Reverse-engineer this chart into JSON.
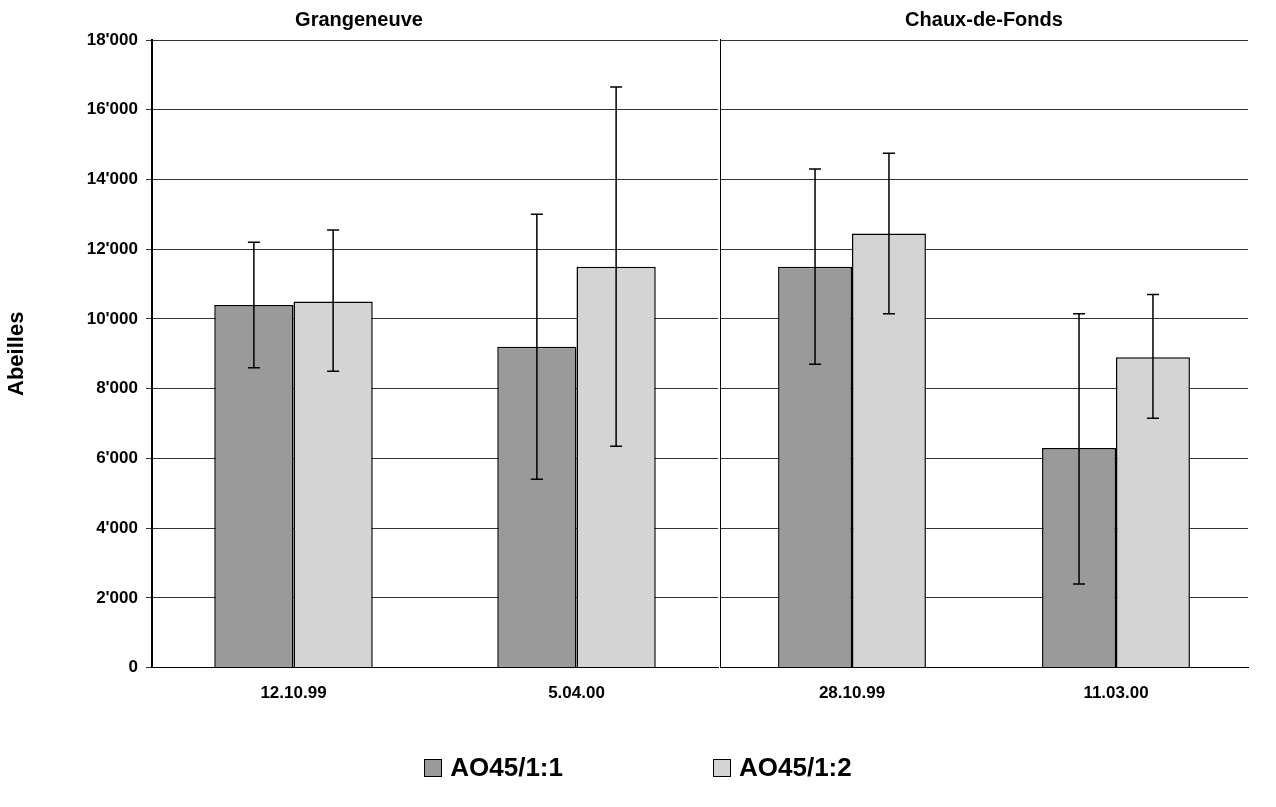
{
  "chart_data": [
    {
      "type": "bar",
      "title": "Grangeneuve",
      "ylabel": "Abeilles",
      "categories": [
        "12.10.99",
        "5.04.00"
      ],
      "series": [
        {
          "name": "AO45/1:1",
          "color": "#9a9a9a",
          "values": [
            10400,
            9200
          ],
          "errors": [
            [
              8600,
              12200
            ],
            [
              5400,
              13000
            ]
          ]
        },
        {
          "name": "AO45/1:2",
          "color": "#d4d4d4",
          "values": [
            10500,
            11500
          ],
          "errors": [
            [
              8500,
              12550
            ],
            [
              6350,
              16650
            ]
          ]
        }
      ],
      "ylim": [
        0,
        18000
      ],
      "yticks": [
        {
          "value": 0,
          "label": "0"
        },
        {
          "value": 2000,
          "label": "2'000"
        },
        {
          "value": 4000,
          "label": "4'000"
        },
        {
          "value": 6000,
          "label": "6'000"
        },
        {
          "value": 8000,
          "label": "8'000"
        },
        {
          "value": 10000,
          "label": "10'000"
        },
        {
          "value": 12000,
          "label": "12'000"
        },
        {
          "value": 14000,
          "label": "14'000"
        },
        {
          "value": 16000,
          "label": "16'000"
        },
        {
          "value": 18000,
          "label": "18'000"
        }
      ],
      "grid": "y",
      "legend": "bottom"
    },
    {
      "type": "bar",
      "title": "Chaux-de-Fonds",
      "categories": [
        "28.10.99",
        "11.03.00"
      ],
      "series": [
        {
          "color": "#9a9a9a",
          "values": [
            11500,
            6300
          ],
          "errors": [
            [
              8700,
              14300
            ],
            [
              2400,
              10150
            ]
          ]
        },
        {
          "color": "#d4d4d4",
          "values": [
            12450,
            8900
          ],
          "errors": [
            [
              10150,
              14750
            ],
            [
              7150,
              10700
            ]
          ]
        }
      ],
      "ylim": [
        0,
        18000
      ],
      "yticks": [
        0,
        2000,
        4000,
        6000,
        8000,
        10000,
        12000,
        14000,
        16000,
        18000
      ],
      "grid": "y",
      "tick_labels": "x"
    }
  ]
}
